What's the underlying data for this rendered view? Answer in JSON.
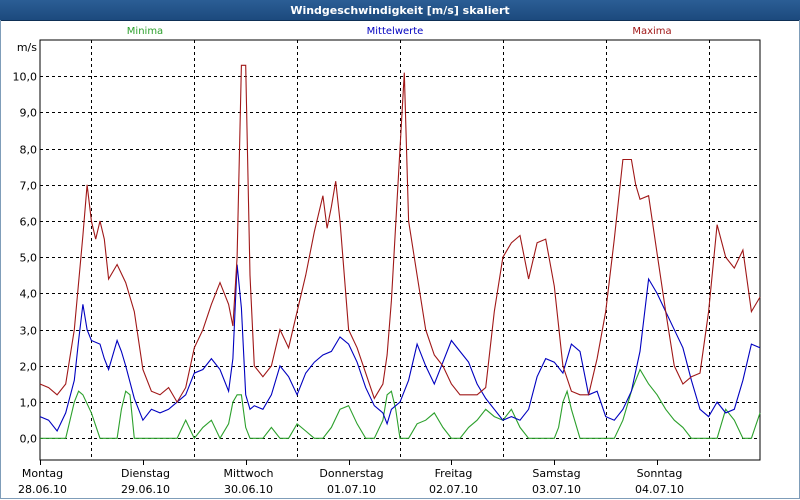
{
  "window": {
    "title": "Windgeschwindigkeit [m/s] skaliert"
  },
  "chart_data": {
    "type": "line",
    "title": "Windgeschwindigkeit [m/s] skaliert",
    "ylabel": "m/s",
    "ylim": [
      -0.6,
      11.0
    ],
    "yticks": [
      0,
      1,
      2,
      3,
      4,
      5,
      6,
      7,
      8,
      9,
      10
    ],
    "ytick_labels": [
      "0,0",
      "1,0",
      "2,0",
      "3,0",
      "4,0",
      "5,0",
      "6,0",
      "7,0",
      "8,0",
      "9,0",
      "10,0"
    ],
    "day_labels": [
      {
        "day": "Montag",
        "date": "28.06.10"
      },
      {
        "day": "Dienstag",
        "date": "29.06.10"
      },
      {
        "day": "Mittwoch",
        "date": "30.06.10"
      },
      {
        "day": "Donnerstag",
        "date": "01.07.10"
      },
      {
        "day": "Freitag",
        "date": "02.07.10"
      },
      {
        "day": "Samstag",
        "date": "03.07.10"
      },
      {
        "day": "Sonntag",
        "date": "04.07.10"
      }
    ],
    "xlim": [
      0,
      168
    ],
    "series": [
      {
        "name": "Minima",
        "color": "#2ca02c",
        "x": [
          0,
          2,
          4,
          6,
          7,
          8,
          9,
          10,
          12,
          14,
          16,
          18,
          19,
          20,
          21,
          22,
          24,
          26,
          28,
          30,
          32,
          34,
          36,
          38,
          40,
          42,
          44,
          45,
          46,
          47,
          48,
          49,
          50,
          52,
          54,
          56,
          58,
          60,
          62,
          64,
          66,
          68,
          70,
          72,
          74,
          76,
          78,
          80,
          81,
          82,
          83,
          84,
          86,
          88,
          90,
          92,
          94,
          96,
          98,
          100,
          102,
          104,
          106,
          108,
          110,
          112,
          114,
          116,
          118,
          120,
          121,
          122,
          123,
          124,
          126,
          128,
          130,
          132,
          134,
          136,
          138,
          140,
          142,
          144,
          146,
          148,
          150,
          152,
          154,
          156,
          158,
          160,
          162,
          164,
          166,
          168
        ],
        "values": [
          0,
          0,
          0,
          0,
          0.5,
          1.0,
          1.3,
          1.2,
          0.7,
          0,
          0,
          0,
          0.8,
          1.3,
          1.2,
          0,
          0,
          0,
          0,
          0,
          0,
          0.5,
          0,
          0.3,
          0.5,
          0,
          0.4,
          1.0,
          1.2,
          1.2,
          0.3,
          0,
          0,
          0,
          0.3,
          0,
          0,
          0.4,
          0.2,
          0,
          0,
          0.3,
          0.8,
          0.9,
          0.4,
          0,
          0,
          0.5,
          1.2,
          1.3,
          0.8,
          0,
          0,
          0.4,
          0.5,
          0.7,
          0.3,
          0,
          0,
          0.3,
          0.5,
          0.8,
          0.6,
          0.5,
          0.8,
          0.3,
          0,
          0,
          0,
          0,
          0.3,
          1.0,
          1.3,
          0.8,
          0,
          0,
          0,
          0,
          0,
          0.5,
          1.3,
          1.9,
          1.5,
          1.2,
          0.8,
          0.5,
          0.3,
          0,
          0,
          0,
          0,
          0.8,
          0.5,
          0,
          0,
          0.7
        ]
      },
      {
        "name": "Mittelwerte",
        "color": "#0000c0",
        "x": [
          0,
          2,
          4,
          6,
          8,
          9,
          10,
          11,
          12,
          14,
          15,
          16,
          18,
          19,
          20,
          22,
          24,
          26,
          28,
          30,
          32,
          34,
          36,
          38,
          40,
          42,
          44,
          45,
          46,
          47,
          48,
          49,
          50,
          52,
          54,
          56,
          58,
          60,
          62,
          64,
          66,
          68,
          70,
          72,
          74,
          76,
          78,
          80,
          81,
          82,
          84,
          86,
          88,
          90,
          92,
          94,
          96,
          98,
          100,
          102,
          104,
          106,
          108,
          110,
          112,
          114,
          116,
          118,
          120,
          122,
          124,
          126,
          128,
          130,
          132,
          134,
          136,
          138,
          140,
          142,
          144,
          146,
          148,
          150,
          152,
          154,
          156,
          158,
          160,
          162,
          164,
          166,
          168
        ],
        "values": [
          0.6,
          0.5,
          0.2,
          0.7,
          1.6,
          2.7,
          3.7,
          3.0,
          2.7,
          2.6,
          2.2,
          1.9,
          2.7,
          2.4,
          2.0,
          1.1,
          0.5,
          0.8,
          0.7,
          0.8,
          1.0,
          1.2,
          1.8,
          1.9,
          2.2,
          1.9,
          1.3,
          2.2,
          4.8,
          3.6,
          1.2,
          0.8,
          0.9,
          0.8,
          1.2,
          2.0,
          1.7,
          1.2,
          1.8,
          2.1,
          2.3,
          2.4,
          2.8,
          2.6,
          2.1,
          1.4,
          0.9,
          0.7,
          0.4,
          0.8,
          1.0,
          1.6,
          2.6,
          2.0,
          1.5,
          2.1,
          2.7,
          2.4,
          2.1,
          1.5,
          1.1,
          0.8,
          0.5,
          0.6,
          0.5,
          0.8,
          1.7,
          2.2,
          2.1,
          1.8,
          2.6,
          2.4,
          1.2,
          1.3,
          0.6,
          0.5,
          0.8,
          1.3,
          2.4,
          4.4,
          4.0,
          3.5,
          3.0,
          2.5,
          1.6,
          0.8,
          0.6,
          1.0,
          0.7,
          0.8,
          1.6,
          2.6,
          2.5
        ]
      },
      {
        "name": "Maxima",
        "color": "#a01818",
        "x": [
          0,
          2,
          4,
          6,
          8,
          10,
          11,
          12,
          13,
          14,
          15,
          16,
          18,
          20,
          22,
          24,
          26,
          28,
          30,
          32,
          34,
          36,
          38,
          40,
          42,
          44,
          45,
          46,
          47,
          48,
          49,
          50,
          52,
          54,
          56,
          58,
          60,
          62,
          64,
          66,
          67,
          68,
          69,
          70,
          72,
          74,
          76,
          78,
          80,
          81,
          82,
          84,
          85,
          86,
          88,
          90,
          92,
          94,
          96,
          98,
          100,
          102,
          104,
          106,
          108,
          110,
          112,
          114,
          116,
          118,
          120,
          122,
          124,
          126,
          128,
          130,
          132,
          134,
          136,
          138,
          139,
          140,
          142,
          144,
          146,
          148,
          150,
          152,
          154,
          156,
          158,
          160,
          162,
          164,
          166,
          168
        ],
        "values": [
          1.5,
          1.4,
          1.2,
          1.5,
          3.0,
          5.6,
          7.0,
          6.0,
          5.5,
          6.0,
          5.5,
          4.4,
          4.8,
          4.3,
          3.5,
          1.9,
          1.3,
          1.2,
          1.4,
          1.0,
          1.4,
          2.5,
          3.0,
          3.7,
          4.3,
          3.7,
          3.1,
          5.0,
          10.3,
          10.3,
          4.5,
          2.0,
          1.7,
          2.0,
          3.0,
          2.5,
          3.5,
          4.5,
          5.7,
          6.7,
          5.8,
          6.4,
          7.1,
          6.0,
          3.0,
          2.5,
          1.8,
          1.1,
          1.5,
          2.3,
          3.8,
          8.0,
          10.1,
          6.0,
          4.5,
          3.0,
          2.3,
          2.0,
          1.5,
          1.2,
          1.2,
          1.2,
          1.4,
          3.5,
          5.0,
          5.4,
          5.6,
          4.4,
          5.4,
          5.5,
          4.2,
          2.0,
          1.3,
          1.2,
          1.2,
          2.2,
          3.5,
          5.5,
          7.7,
          7.7,
          7.0,
          6.6,
          6.7,
          5.1,
          3.5,
          2.0,
          1.5,
          1.7,
          1.8,
          3.5,
          5.9,
          5.0,
          4.7,
          5.2,
          3.5,
          3.9
        ]
      }
    ]
  }
}
